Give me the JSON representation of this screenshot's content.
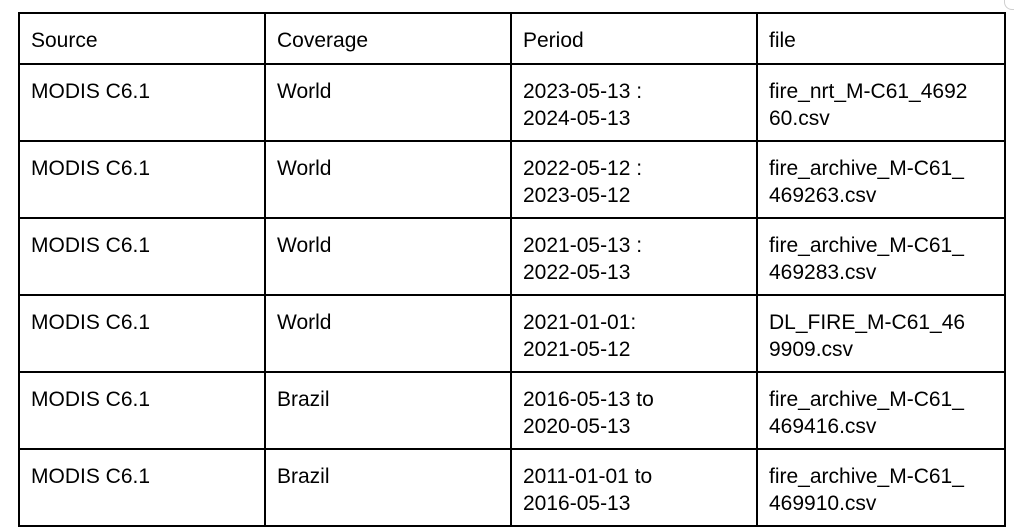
{
  "table": {
    "headers": [
      "Source",
      "Coverage",
      "Period",
      "file"
    ],
    "rows": [
      {
        "source": "MODIS C6.1",
        "coverage": "World",
        "period": [
          "2023-05-13 :",
          "2024-05-13"
        ],
        "file": [
          "fire_nrt_M-C61_4692",
          "60.csv"
        ]
      },
      {
        "source": "MODIS C6.1",
        "coverage": "World",
        "period": [
          "2022-05-12 :",
          "2023-05-12"
        ],
        "file": [
          "fire_archive_M-C61_",
          "469263.csv"
        ]
      },
      {
        "source": "MODIS C6.1",
        "coverage": "World",
        "period": [
          "2021-05-13 :",
          "2022-05-13"
        ],
        "file": [
          "fire_archive_M-C61_",
          "469283.csv"
        ]
      },
      {
        "source": "MODIS C6.1",
        "coverage": "World",
        "period": [
          "2021-01-01:",
          "2021-05-12"
        ],
        "file": [
          "DL_FIRE_M-C61_46",
          "9909.csv"
        ]
      },
      {
        "source": "MODIS C6.1",
        "coverage": "Brazil",
        "period": [
          "2016-05-13 to",
          "2020-05-13"
        ],
        "file": [
          "fire_archive_M-C61_",
          "469416.csv"
        ]
      },
      {
        "source": "MODIS C6.1",
        "coverage": "Brazil",
        "period": [
          "2011-01-01 to",
          "2016-05-13"
        ],
        "file": [
          "fire_archive_M-C61_",
          "469910.csv"
        ]
      }
    ]
  }
}
